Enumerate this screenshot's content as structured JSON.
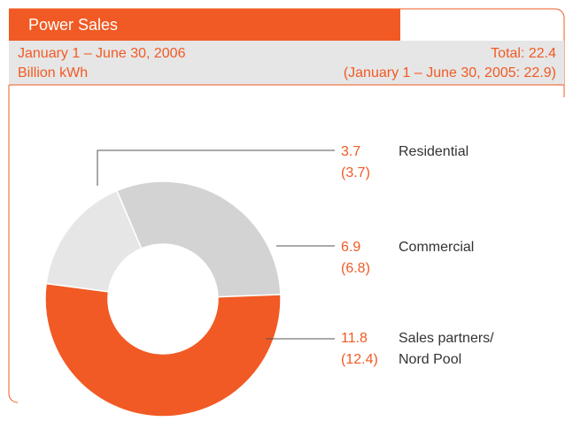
{
  "chart_data": {
    "type": "pie",
    "donut": true,
    "title": "Power Sales",
    "subtitle": "January 1 – June 30, 2006",
    "unit": "Billion kWh",
    "total": "Total: 22.4",
    "comparison": "(January 1 – June 30, 2005: 22.9)",
    "categories": [
      "Residential",
      "Commercial",
      "Sales partners/ Nord Pool"
    ],
    "values": [
      3.7,
      6.9,
      11.8
    ],
    "prior_values": [
      3.7,
      6.8,
      12.4
    ],
    "prior_value_labels": [
      "(3.7)",
      "(6.8)",
      "(12.4)"
    ],
    "colors": [
      "#e6e6e6",
      "#d3d3d3",
      "#f15a24"
    ]
  }
}
